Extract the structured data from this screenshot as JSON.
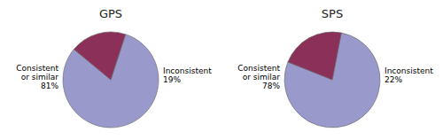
{
  "chart_data": [
    {
      "type": "pie",
      "title": "GPS",
      "categories": [
        "Consistent\nor similar",
        "Inconsistent"
      ],
      "values": [
        81,
        19
      ],
      "value_labels": [
        "81%",
        "19%"
      ],
      "colors": [
        "#9999cc",
        "#8b3058"
      ],
      "data_labels": true
    },
    {
      "type": "pie",
      "title": "SPS",
      "categories": [
        "Consistent\nor similar",
        "Inconsistent"
      ],
      "values": [
        78,
        22
      ],
      "value_labels": [
        "78%",
        "22%"
      ],
      "colors": [
        "#9999cc",
        "#8b3058"
      ],
      "data_labels": true
    }
  ]
}
